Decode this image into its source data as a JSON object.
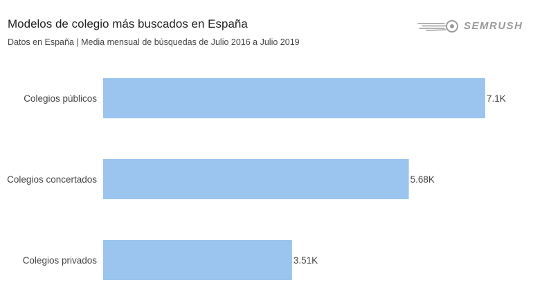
{
  "title": "Modelos de colegio más buscados en España",
  "subtitle": "Datos en España | Media mensual de búsquedas de Julio 2016 a Julio 2019",
  "logo": {
    "text": "SEMRUSH",
    "icon": "fireball-icon",
    "color": "#9a9a9a"
  },
  "chart_data": {
    "type": "bar",
    "orientation": "horizontal",
    "categories": [
      "Colegios públicos",
      "Colegios concertados",
      "Colegios privados"
    ],
    "values": [
      7100,
      5680,
      3510
    ],
    "data_labels": [
      "7.1K",
      "5.68K",
      "3.51K"
    ],
    "bar_color": "#9bc5ee",
    "xlim": [
      0,
      7100
    ],
    "grid": false,
    "legend": "none",
    "title": "Modelos de colegio más buscados en España",
    "xlabel": "",
    "ylabel": ""
  }
}
